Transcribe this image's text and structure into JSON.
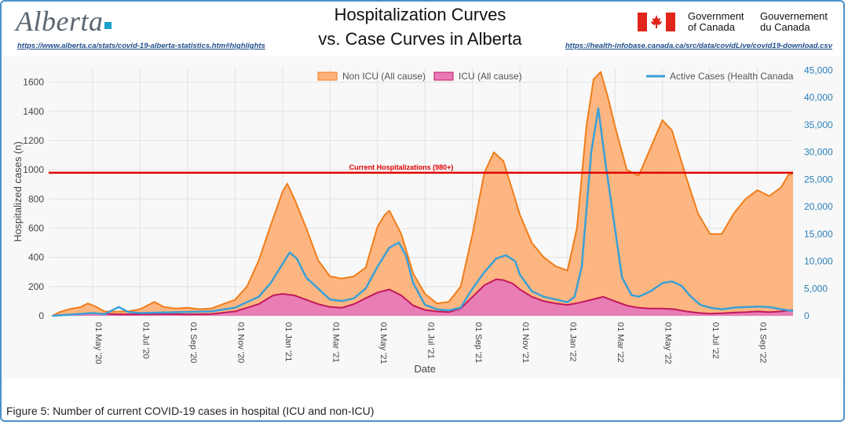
{
  "header": {
    "logo_text": "Alberta",
    "link_left": "https://www.alberta.ca/stats/covid-19-alberta-statistics.htm#highlights",
    "title_line1": "Hospitalization Curves",
    "title_line2": "vs. Case Curves in Alberta",
    "gov_en": [
      "Government",
      "of Canada"
    ],
    "gov_fr": [
      "Gouvernement",
      "du Canada"
    ],
    "link_right": "https://health-infobase.canada.ca/src/data/covidLive/covid19-download.csv"
  },
  "caption": "Figure 5: Number of current COVID-19 cases in hospital (ICU and non-ICU)",
  "colors": {
    "non_icu_fill": "#fdb27a",
    "non_icu_line": "#f07d1a",
    "icu_fill": "#e87ab8",
    "icu_line": "#c2185b",
    "active_line": "#3aa0d6",
    "ref_line": "#e00000",
    "left_axis": "#444444",
    "right_axis": "#2a7fb8"
  },
  "chart_data": {
    "type": "area",
    "title": "Hospitalization Curves vs. Case Curves in Alberta",
    "xlabel": "Date",
    "ylabel": "Hospitalized cases (n)",
    "ylim": [
      0,
      1700
    ],
    "y2lim": [
      0,
      45500
    ],
    "yticks": [
      0,
      200,
      400,
      600,
      800,
      1000,
      1200,
      1400,
      1600
    ],
    "y2ticks": [
      0,
      5000,
      10000,
      15000,
      20000,
      25000,
      30000,
      35000,
      40000,
      45000
    ],
    "y2tick_labels": [
      "0",
      "5,000",
      "10,000",
      "15,000",
      "20,000",
      "25,000",
      "30,000",
      "35,000",
      "40,000",
      "45,000"
    ],
    "xlim_month_index": [
      -1.85,
      29.5
    ],
    "xticks": [
      {
        "label": "01 May '20",
        "m": 0
      },
      {
        "label": "01 Jul '20",
        "m": 2
      },
      {
        "label": "01 Sep '20",
        "m": 4
      },
      {
        "label": "01 Nov '20",
        "m": 6
      },
      {
        "label": "01 Jan '21",
        "m": 8
      },
      {
        "label": "01 Mar '21",
        "m": 10
      },
      {
        "label": "01 May '21",
        "m": 12
      },
      {
        "label": "01 Jul '21",
        "m": 14
      },
      {
        "label": "01 Sep '21",
        "m": 16
      },
      {
        "label": "01 Nov '21",
        "m": 18
      },
      {
        "label": "01 Jan '22",
        "m": 20
      },
      {
        "label": "01 Mar '22",
        "m": 22
      },
      {
        "label": "01 May '22",
        "m": 24
      },
      {
        "label": "01 Jul '22",
        "m": 26
      },
      {
        "label": "01 Sep '22",
        "m": 28
      }
    ],
    "reference_line": {
      "value": 980,
      "label": "Current Hospitalizations (980+)"
    },
    "series": [
      {
        "name": "Non ICU (All cause)",
        "axis": "left",
        "style": "area",
        "points": [
          [
            -1.7,
            0
          ],
          [
            -1.4,
            25
          ],
          [
            -1,
            45
          ],
          [
            -0.5,
            60
          ],
          [
            -0.2,
            85
          ],
          [
            0.1,
            65
          ],
          [
            0.5,
            30
          ],
          [
            1,
            28
          ],
          [
            1.5,
            30
          ],
          [
            2,
            45
          ],
          [
            2.6,
            95
          ],
          [
            3,
            60
          ],
          [
            3.5,
            50
          ],
          [
            4,
            55
          ],
          [
            4.5,
            45
          ],
          [
            5,
            50
          ],
          [
            5.5,
            80
          ],
          [
            6,
            110
          ],
          [
            6.5,
            200
          ],
          [
            7,
            380
          ],
          [
            7.5,
            620
          ],
          [
            8,
            850
          ],
          [
            8.2,
            905
          ],
          [
            8.5,
            800
          ],
          [
            9,
            600
          ],
          [
            9.5,
            380
          ],
          [
            10,
            270
          ],
          [
            10.5,
            255
          ],
          [
            11,
            270
          ],
          [
            11.5,
            330
          ],
          [
            12,
            610
          ],
          [
            12.3,
            690
          ],
          [
            12.5,
            720
          ],
          [
            13,
            560
          ],
          [
            13.5,
            290
          ],
          [
            14,
            150
          ],
          [
            14.5,
            85
          ],
          [
            15,
            95
          ],
          [
            15.5,
            200
          ],
          [
            16,
            560
          ],
          [
            16.5,
            980
          ],
          [
            16.9,
            1120
          ],
          [
            17.3,
            1060
          ],
          [
            17.7,
            850
          ],
          [
            18,
            690
          ],
          [
            18.5,
            500
          ],
          [
            19,
            400
          ],
          [
            19.5,
            340
          ],
          [
            20,
            310
          ],
          [
            20.4,
            600
          ],
          [
            20.8,
            1300
          ],
          [
            21.1,
            1620
          ],
          [
            21.4,
            1670
          ],
          [
            21.7,
            1500
          ],
          [
            22,
            1300
          ],
          [
            22.5,
            1000
          ],
          [
            23,
            960
          ],
          [
            23.5,
            1150
          ],
          [
            24,
            1340
          ],
          [
            24.4,
            1270
          ],
          [
            25,
            950
          ],
          [
            25.5,
            700
          ],
          [
            26,
            560
          ],
          [
            26.5,
            560
          ],
          [
            27,
            700
          ],
          [
            27.5,
            800
          ],
          [
            28,
            860
          ],
          [
            28.5,
            820
          ],
          [
            29,
            880
          ],
          [
            29.3,
            965
          ],
          [
            29.5,
            975
          ]
        ]
      },
      {
        "name": "ICU (All cause)",
        "axis": "left",
        "style": "area",
        "points": [
          [
            -1.7,
            0
          ],
          [
            -1,
            8
          ],
          [
            0,
            18
          ],
          [
            1,
            10
          ],
          [
            2,
            10
          ],
          [
            3,
            12
          ],
          [
            4,
            10
          ],
          [
            5,
            12
          ],
          [
            6,
            30
          ],
          [
            7,
            80
          ],
          [
            7.6,
            140
          ],
          [
            8,
            150
          ],
          [
            8.5,
            140
          ],
          [
            9,
            110
          ],
          [
            9.5,
            80
          ],
          [
            10,
            60
          ],
          [
            10.5,
            55
          ],
          [
            11,
            80
          ],
          [
            11.5,
            120
          ],
          [
            12,
            160
          ],
          [
            12.5,
            180
          ],
          [
            13,
            140
          ],
          [
            13.5,
            70
          ],
          [
            14,
            40
          ],
          [
            14.5,
            30
          ],
          [
            15,
            25
          ],
          [
            15.5,
            50
          ],
          [
            16,
            130
          ],
          [
            16.5,
            210
          ],
          [
            17,
            250
          ],
          [
            17.3,
            245
          ],
          [
            17.7,
            220
          ],
          [
            18,
            180
          ],
          [
            18.5,
            130
          ],
          [
            19,
            100
          ],
          [
            19.5,
            85
          ],
          [
            20,
            75
          ],
          [
            20.5,
            90
          ],
          [
            21,
            110
          ],
          [
            21.5,
            130
          ],
          [
            22,
            100
          ],
          [
            22.5,
            70
          ],
          [
            23,
            55
          ],
          [
            23.5,
            50
          ],
          [
            24,
            50
          ],
          [
            24.5,
            45
          ],
          [
            25,
            30
          ],
          [
            25.5,
            20
          ],
          [
            26,
            15
          ],
          [
            26.5,
            18
          ],
          [
            27,
            22
          ],
          [
            27.5,
            25
          ],
          [
            28,
            30
          ],
          [
            28.5,
            25
          ],
          [
            29,
            30
          ],
          [
            29.5,
            40
          ]
        ]
      },
      {
        "name": "Active Cases (Health Canada",
        "axis": "right",
        "style": "line",
        "points": [
          [
            -1.7,
            0
          ],
          [
            -1,
            200
          ],
          [
            0,
            500
          ],
          [
            0.5,
            300
          ],
          [
            1.1,
            1600
          ],
          [
            1.5,
            700
          ],
          [
            2,
            500
          ],
          [
            3,
            600
          ],
          [
            4,
            700
          ],
          [
            5,
            800
          ],
          [
            6,
            1500
          ],
          [
            7,
            3500
          ],
          [
            7.5,
            6000
          ],
          [
            8,
            9500
          ],
          [
            8.3,
            11600
          ],
          [
            8.6,
            10500
          ],
          [
            9,
            7000
          ],
          [
            9.5,
            5000
          ],
          [
            10,
            3000
          ],
          [
            10.5,
            2700
          ],
          [
            11,
            3200
          ],
          [
            11.5,
            5000
          ],
          [
            12,
            9000
          ],
          [
            12.5,
            12500
          ],
          [
            12.9,
            13400
          ],
          [
            13.2,
            11000
          ],
          [
            13.5,
            6000
          ],
          [
            14,
            2000
          ],
          [
            14.5,
            1200
          ],
          [
            15,
            1000
          ],
          [
            15.5,
            1500
          ],
          [
            16,
            5000
          ],
          [
            16.5,
            8000
          ],
          [
            17,
            10500
          ],
          [
            17.4,
            11100
          ],
          [
            17.8,
            10000
          ],
          [
            18,
            7500
          ],
          [
            18.5,
            4500
          ],
          [
            19,
            3500
          ],
          [
            19.5,
            3000
          ],
          [
            20,
            2500
          ],
          [
            20.3,
            3500
          ],
          [
            20.6,
            9000
          ],
          [
            21,
            30000
          ],
          [
            21.3,
            38000
          ],
          [
            21.6,
            28000
          ],
          [
            22,
            16000
          ],
          [
            22.3,
            7000
          ],
          [
            22.7,
            3800
          ],
          [
            23,
            3500
          ],
          [
            23.5,
            4500
          ],
          [
            24,
            6000
          ],
          [
            24.4,
            6300
          ],
          [
            24.8,
            5500
          ],
          [
            25.2,
            3500
          ],
          [
            25.6,
            2000
          ],
          [
            26,
            1500
          ],
          [
            26.5,
            1200
          ],
          [
            27,
            1500
          ],
          [
            27.5,
            1600
          ],
          [
            28,
            1700
          ],
          [
            28.5,
            1600
          ],
          [
            29,
            1200
          ],
          [
            29.5,
            900
          ]
        ]
      }
    ],
    "legend": [
      {
        "label": "Non ICU (All cause)",
        "kind": "area-orange"
      },
      {
        "label": "ICU (All cause)",
        "kind": "area-pink"
      },
      {
        "label": "Active Cases (Health Canada",
        "kind": "line-blue"
      }
    ]
  }
}
